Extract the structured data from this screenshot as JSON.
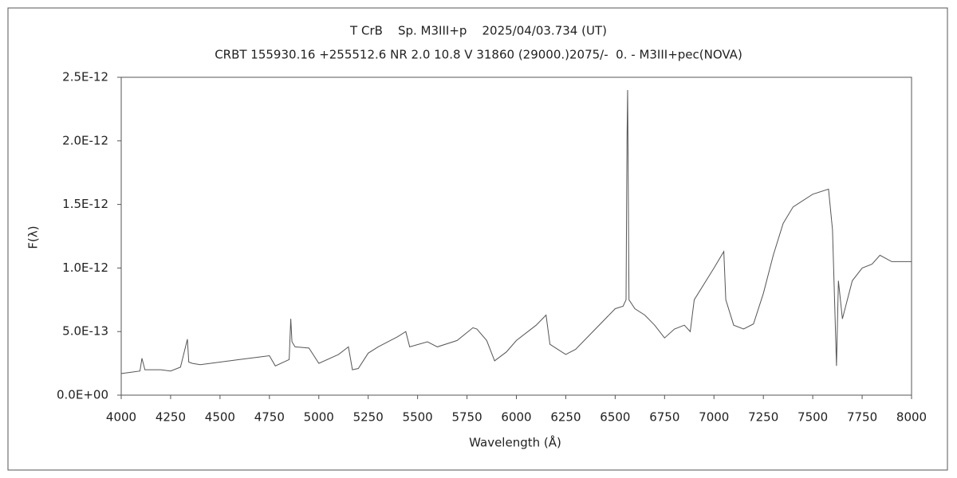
{
  "chart_data": {
    "type": "line",
    "title": "T CrB    Sp. M3III+p    2025/04/03.734 (UT)",
    "subtitle": "CRBT 155930.16 +255512.6 NR 2.0 10.8 V 31860 (29000.)2075/-  0. - M3III+pec(NOVA)",
    "xlabel": "Wavelength (Å)",
    "ylabel": "F(λ)",
    "color": "#555555",
    "x": [
      4000,
      4050,
      4095,
      4105,
      4120,
      4200,
      4250,
      4300,
      4335,
      4342,
      4360,
      4400,
      4500,
      4600,
      4700,
      4750,
      4780,
      4850,
      4858,
      4864,
      4880,
      4950,
      5000,
      5100,
      5150,
      5170,
      5200,
      5250,
      5300,
      5400,
      5440,
      5460,
      5550,
      5600,
      5700,
      5780,
      5800,
      5850,
      5890,
      5950,
      6000,
      6100,
      6150,
      6170,
      6250,
      6300,
      6400,
      6500,
      6540,
      6555,
      6560,
      6563,
      6570,
      6600,
      6650,
      6700,
      6750,
      6800,
      6850,
      6880,
      6900,
      7000,
      7050,
      7060,
      7100,
      7150,
      7200,
      7250,
      7300,
      7350,
      7400,
      7500,
      7580,
      7600,
      7620,
      7630,
      7650,
      7700,
      7750,
      7800,
      7840,
      7900,
      7950,
      8000
    ],
    "values": [
      1.7e-13,
      1.8e-13,
      1.9e-13,
      2.9e-13,
      2e-13,
      2e-13,
      1.9e-13,
      2.2e-13,
      4.4e-13,
      2.6e-13,
      2.5e-13,
      2.4e-13,
      2.6e-13,
      2.8e-13,
      3e-13,
      3.1e-13,
      2.3e-13,
      2.8e-13,
      6e-13,
      4.2e-13,
      3.8e-13,
      3.7e-13,
      2.5e-13,
      3.2e-13,
      3.8e-13,
      2e-13,
      2.1e-13,
      3.3e-13,
      3.8e-13,
      4.6e-13,
      5e-13,
      3.8e-13,
      4.2e-13,
      3.8e-13,
      4.3e-13,
      5.3e-13,
      5.2e-13,
      4.3e-13,
      2.7e-13,
      3.4e-13,
      4.3e-13,
      5.5e-13,
      6.3e-13,
      4e-13,
      3.2e-13,
      3.6e-13,
      5.2e-13,
      6.8e-13,
      7e-13,
      7.5e-13,
      2e-12,
      2.4e-12,
      7.5e-13,
      6.8e-13,
      6.3e-13,
      5.5e-13,
      4.5e-13,
      5.2e-13,
      5.5e-13,
      5e-13,
      7.5e-13,
      1e-12,
      1.13e-12,
      7.5e-13,
      5.5e-13,
      5.2e-13,
      5.6e-13,
      8e-13,
      1.1e-12,
      1.35e-12,
      1.48e-12,
      1.58e-12,
      1.62e-12,
      1.3e-12,
      2.3e-13,
      9e-13,
      6e-13,
      9e-13,
      1e-12,
      1.03e-12,
      1.1e-12,
      1.05e-12,
      1.05e-12,
      1.05e-12
    ],
    "xlim": [
      4000,
      8000
    ],
    "xticks": [
      4000,
      4250,
      4500,
      4750,
      5000,
      5250,
      5500,
      5750,
      6000,
      6250,
      6500,
      6750,
      7000,
      7250,
      7500,
      7750,
      8000
    ],
    "ylim": [
      0,
      2.5e-12
    ],
    "yticks": [
      {
        "value": 0,
        "label": "0.0E+00"
      },
      {
        "value": 5e-13,
        "label": "5.0E-13"
      },
      {
        "value": 1e-12,
        "label": "1.0E-12"
      },
      {
        "value": 1.5e-12,
        "label": "1.5E-12"
      },
      {
        "value": 2e-12,
        "label": "2.0E-12"
      },
      {
        "value": 2.5e-12,
        "label": "2.5E-12"
      }
    ]
  }
}
